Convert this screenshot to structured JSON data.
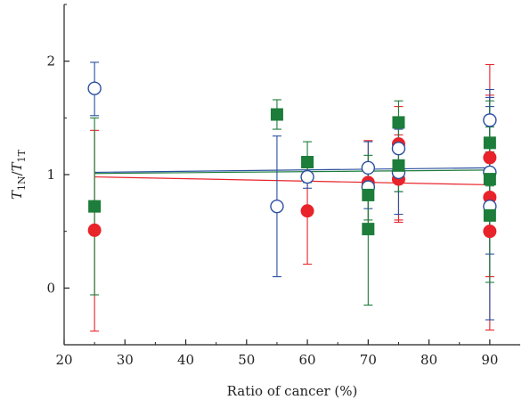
{
  "chart_data": {
    "type": "scatter",
    "xlabel": "Ratio of cancer (%)",
    "ylabel": {
      "main": "T",
      "sub1": "1N",
      "slash": "/",
      "main2": "T",
      "sub2": "1T"
    },
    "xlim": [
      20,
      95
    ],
    "ylim": [
      -0.5,
      2.5
    ],
    "xticks": [
      20,
      30,
      40,
      50,
      60,
      70,
      80,
      90
    ],
    "yticks": [
      0,
      1,
      2
    ],
    "grid": false,
    "series": [
      {
        "color": "#e8232a",
        "marker": "filled-circle",
        "points": [
          {
            "x": 25,
            "y": 0.51,
            "lo": -0.38,
            "hi": 1.39
          },
          {
            "x": 60,
            "y": 0.68,
            "lo": 0.21,
            "hi": 1.15
          },
          {
            "x": 70,
            "y": 0.93,
            "lo": 0.55,
            "hi": 1.3
          },
          {
            "x": 75,
            "y": 1.27,
            "lo": 0.6,
            "hi": 1.6
          },
          {
            "x": 75,
            "y": 0.96,
            "lo": 0.58,
            "hi": 1.35
          },
          {
            "x": 90,
            "y": 0.5,
            "lo": -0.37,
            "hi": 1.97
          },
          {
            "x": 90,
            "y": 0.8,
            "lo": 0.1,
            "hi": 1.5
          },
          {
            "x": 90,
            "y": 1.15,
            "lo": 0.6,
            "hi": 1.7
          }
        ],
        "fit": {
          "x": [
            25,
            90
          ],
          "y": [
            0.98,
            0.91
          ]
        }
      },
      {
        "color": "#2b4fa0",
        "marker": "open-circle",
        "points": [
          {
            "x": 25,
            "y": 1.76,
            "lo": 1.52,
            "hi": 1.99
          },
          {
            "x": 55,
            "y": 0.72,
            "lo": 0.1,
            "hi": 1.34
          },
          {
            "x": 60,
            "y": 0.98,
            "lo": 0.88,
            "hi": 1.1
          },
          {
            "x": 70,
            "y": 1.06,
            "lo": 0.85,
            "hi": 1.29
          },
          {
            "x": 70,
            "y": 0.89,
            "lo": 0.7,
            "hi": 1.08
          },
          {
            "x": 75,
            "y": 1.23,
            "lo": 0.85,
            "hi": 1.45
          },
          {
            "x": 75,
            "y": 1.02,
            "lo": 0.65,
            "hi": 1.4
          },
          {
            "x": 90,
            "y": 1.48,
            "lo": 1.2,
            "hi": 1.75
          },
          {
            "x": 90,
            "y": 1.02,
            "lo": 0.3,
            "hi": 1.68
          },
          {
            "x": 90,
            "y": 0.72,
            "lo": -0.28,
            "hi": 1.6
          }
        ],
        "fit": {
          "x": [
            25,
            90
          ],
          "y": [
            1.02,
            1.06
          ]
        }
      },
      {
        "color": "#1d7d3a",
        "marker": "filled-square",
        "points": [
          {
            "x": 25,
            "y": 0.72,
            "lo": -0.06,
            "hi": 1.5
          },
          {
            "x": 55,
            "y": 1.53,
            "lo": 1.4,
            "hi": 1.66
          },
          {
            "x": 60,
            "y": 1.11,
            "lo": 0.93,
            "hi": 1.29
          },
          {
            "x": 70,
            "y": 0.82,
            "lo": 0.6,
            "hi": 1.05
          },
          {
            "x": 70,
            "y": 0.52,
            "lo": -0.15,
            "hi": 1.17
          },
          {
            "x": 75,
            "y": 1.46,
            "lo": 1.27,
            "hi": 1.65
          },
          {
            "x": 75,
            "y": 1.08,
            "lo": 0.85,
            "hi": 1.3
          },
          {
            "x": 90,
            "y": 1.28,
            "lo": 0.9,
            "hi": 1.65
          },
          {
            "x": 90,
            "y": 0.96,
            "lo": 0.5,
            "hi": 1.42
          },
          {
            "x": 90,
            "y": 0.64,
            "lo": 0.05,
            "hi": 1.2
          }
        ],
        "fit": {
          "x": [
            25,
            90
          ],
          "y": [
            1.01,
            1.04
          ]
        }
      }
    ]
  }
}
